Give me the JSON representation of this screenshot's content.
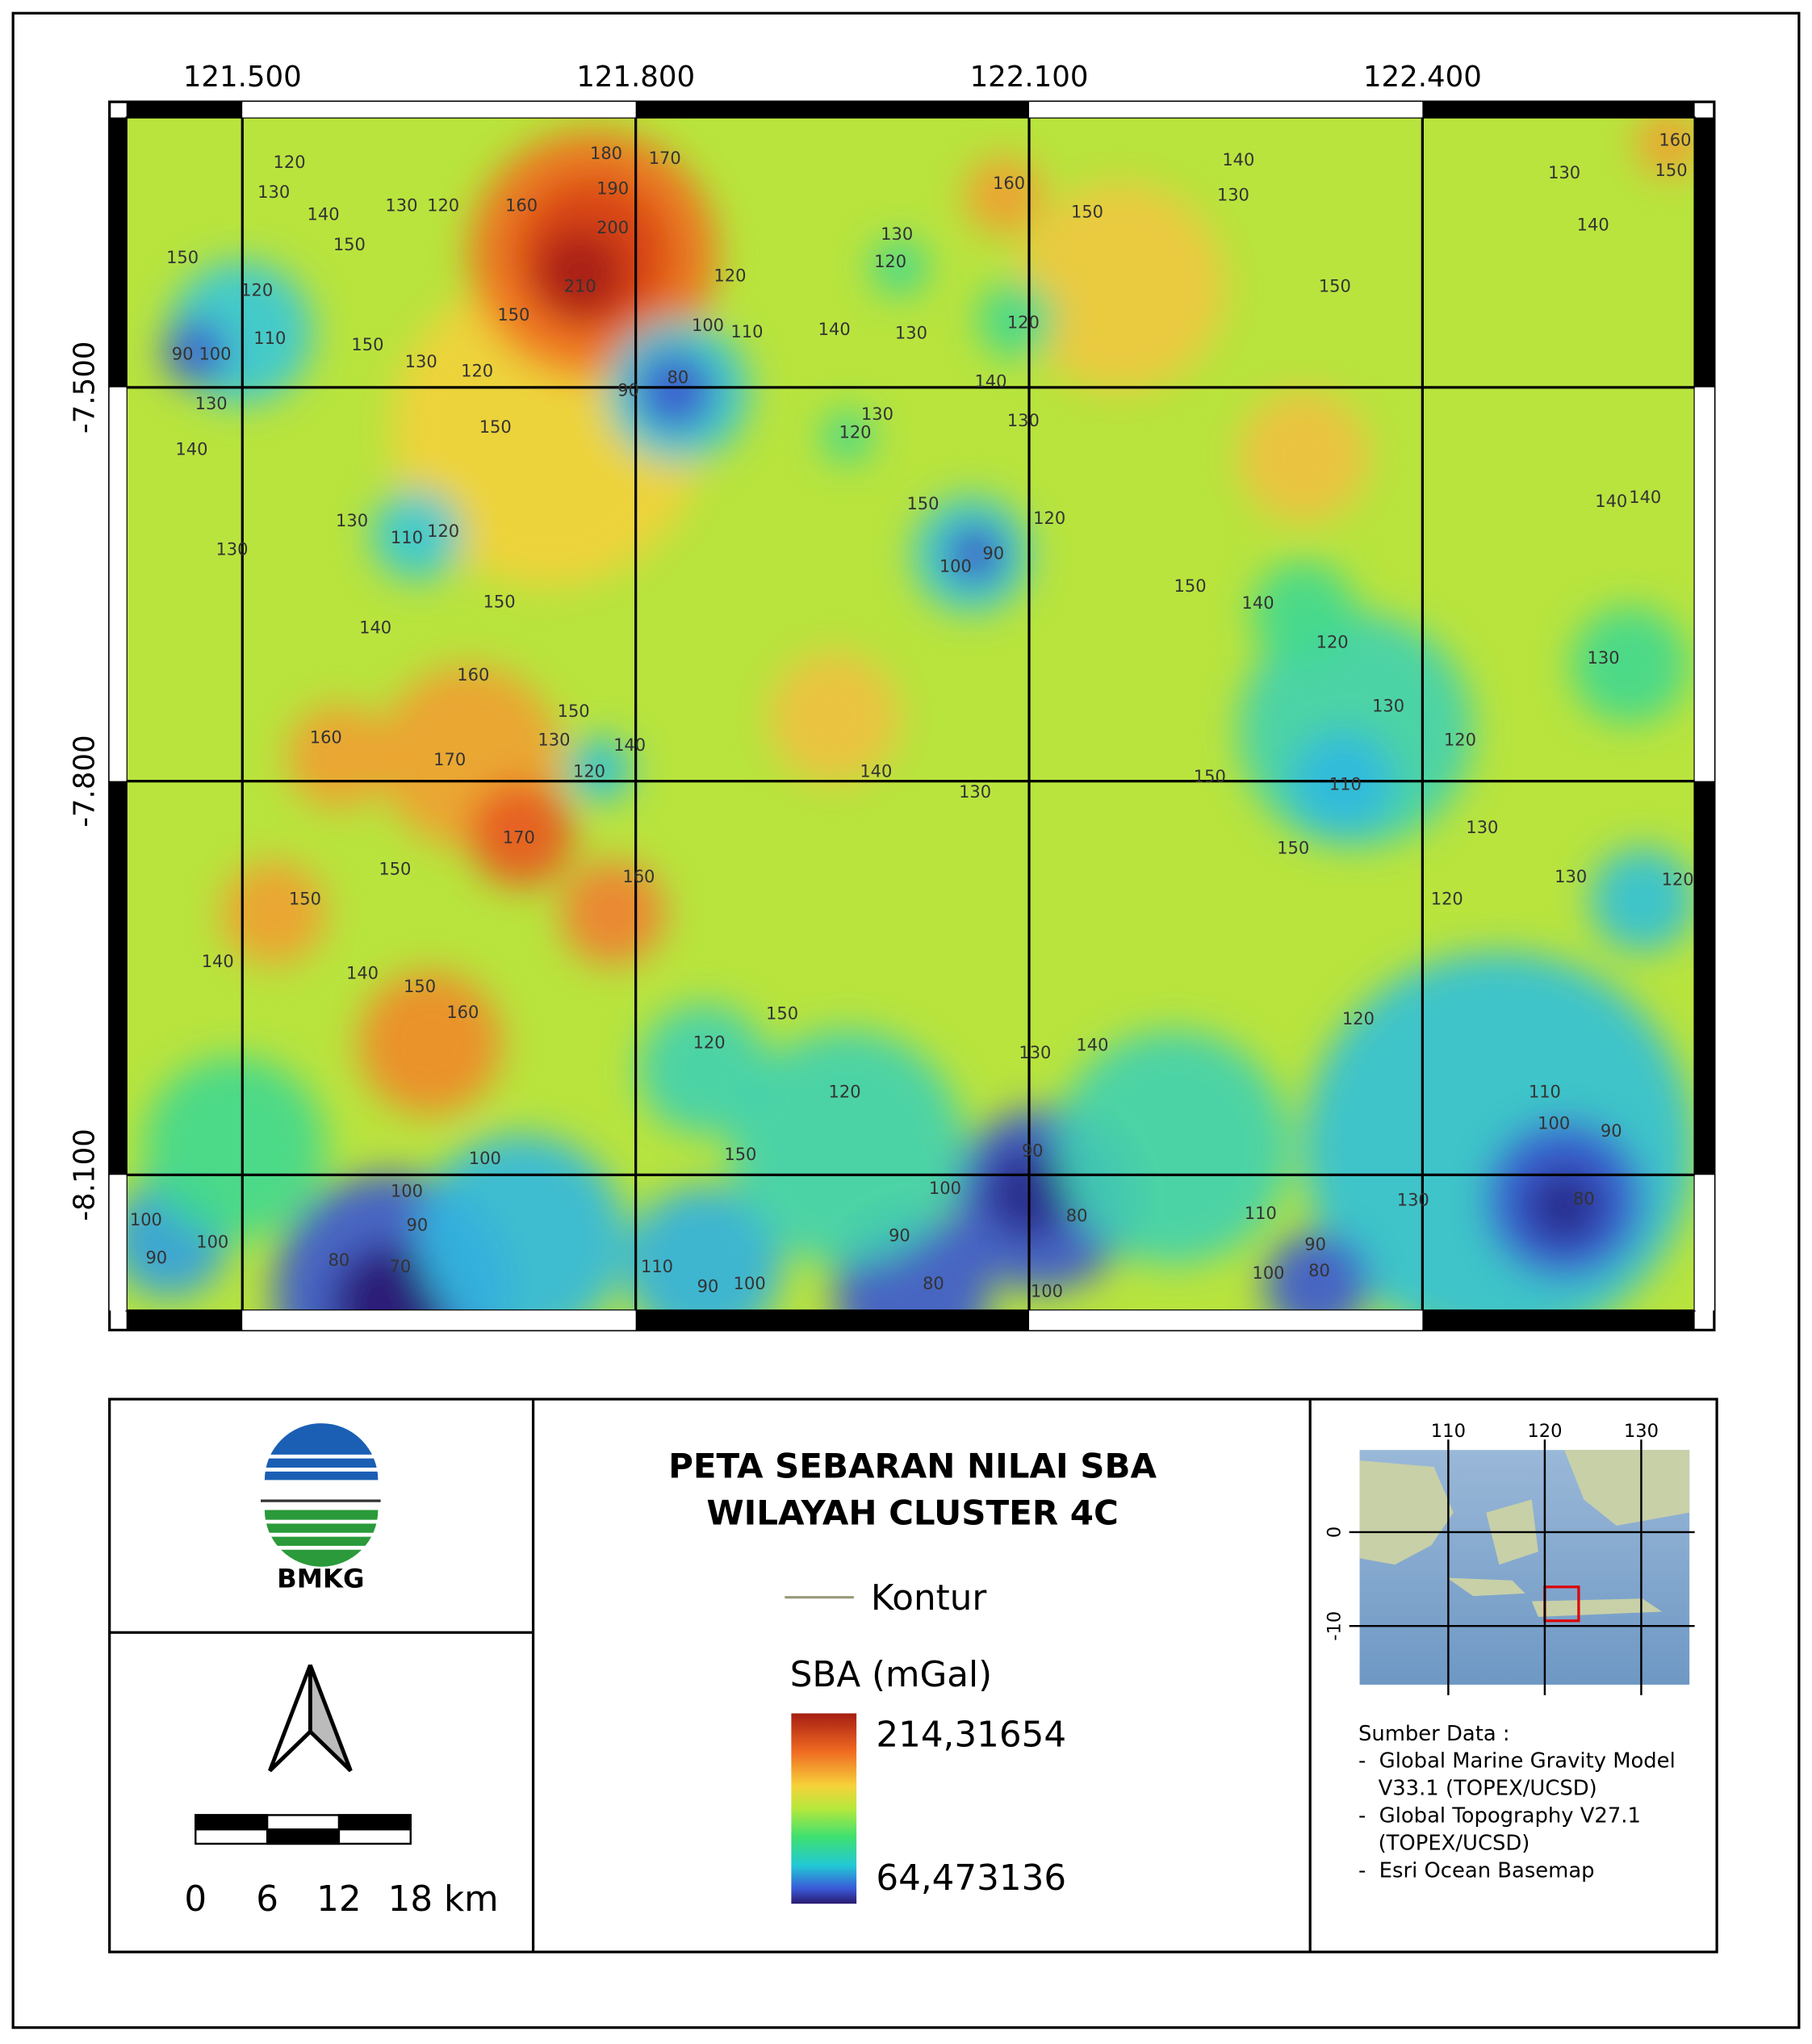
{
  "map": {
    "xlim": [
      121.4116,
      122.6076
    ],
    "ylim": [
      -8.2033,
      -7.2944
    ],
    "xticks": [
      {
        "value": 121.5,
        "label": "121.500"
      },
      {
        "value": 121.8,
        "label": "121.800"
      },
      {
        "value": 122.1,
        "label": "122.100"
      },
      {
        "value": 122.4,
        "label": "122.400"
      }
    ],
    "yticks": [
      {
        "value": -7.5,
        "label": "-7.500"
      },
      {
        "value": -7.8,
        "label": "-7.800"
      },
      {
        "value": -8.1,
        "label": "-8.100"
      }
    ],
    "contour_labels": [
      120,
      130,
      140,
      150,
      150,
      120,
      110,
      90,
      100,
      150,
      130,
      120,
      130,
      120,
      160,
      180,
      190,
      200,
      210,
      150,
      170,
      120,
      100,
      110,
      90,
      80,
      130,
      140,
      150,
      130,
      110,
      120,
      130,
      140,
      150,
      160,
      150,
      130,
      120,
      140,
      160,
      170,
      170,
      150,
      150,
      160,
      140,
      140,
      150,
      160,
      120,
      150,
      120,
      150,
      100,
      100,
      90,
      80,
      70,
      100,
      90,
      100,
      110,
      90,
      100,
      90,
      80,
      100,
      90,
      80,
      100,
      110,
      100,
      90,
      80,
      130,
      80,
      90,
      100,
      110,
      120,
      140,
      130,
      160,
      150,
      130,
      120,
      140,
      130,
      120,
      140,
      130,
      130,
      120,
      150,
      120,
      100,
      90,
      140,
      130,
      130,
      140,
      160,
      150,
      150,
      140,
      140,
      150,
      140,
      120,
      130,
      130,
      120,
      110,
      150,
      130,
      140,
      130,
      150,
      130,
      120,
      120
    ]
  },
  "title": [
    "PETA SEBARAN NILAI SBA",
    "WILAYAH CLUSTER 4C"
  ],
  "legend": {
    "contour": "Kontur",
    "colorbar_title": "SBA (mGal)",
    "max": {
      "value": 214.31654,
      "label": "214,31654"
    },
    "min": {
      "value": 64.473136,
      "label": "64,473136"
    }
  },
  "logo": "BMKG",
  "scale_bar": [
    "0",
    "6",
    "12",
    "18 km"
  ],
  "inset": {
    "xticks": [
      110,
      120,
      130
    ],
    "yticks": [
      0,
      -10
    ]
  },
  "sources": [
    "Sumber Data :",
    "-  Global Marine Gravity Model",
    "   V33.1 (TOPEX/UCSD)",
    "-  Global Topography V27.1",
    "   (TOPEX/UCSD)",
    "-  Esri Ocean Basemap"
  ]
}
